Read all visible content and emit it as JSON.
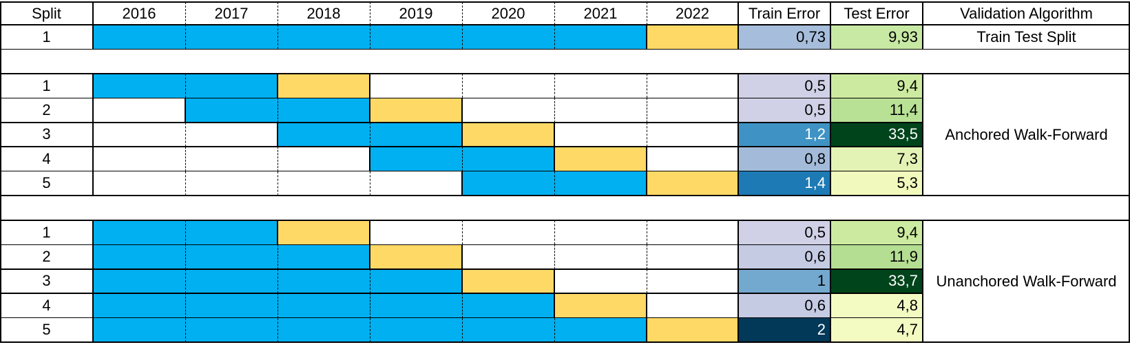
{
  "header": {
    "split": "Split",
    "years": [
      "2016",
      "2017",
      "2018",
      "2019",
      "2020",
      "2021",
      "2022"
    ],
    "train_error": "Train Error",
    "test_error": "Test Error",
    "validation_algorithm": "Validation Algorithm"
  },
  "colors": {
    "train_period": "#00b0f0",
    "test_period": "#ffd966",
    "gridline": "#000000"
  },
  "groups": [
    {
      "algorithm": "Train Test Split",
      "rows": [
        {
          "split": "1",
          "train_years": [
            "2016",
            "2017",
            "2018",
            "2019",
            "2020",
            "2021"
          ],
          "test_year": "2022",
          "train_error": "0,73",
          "train_error_color": "#a6bddb",
          "test_error": "9,93",
          "test_error_color": "#c7e9a4"
        }
      ]
    },
    {
      "algorithm": "Anchored Walk-Forward",
      "rows": [
        {
          "split": "1",
          "train_years": [
            "2016",
            "2017"
          ],
          "test_year": "2018",
          "train_error": "0,5",
          "train_error_color": "#d0d1e6",
          "test_error": "9,4",
          "test_error_color": "#cdeba0"
        },
        {
          "split": "2",
          "train_years": [
            "2017",
            "2018"
          ],
          "test_year": "2019",
          "train_error": "0,5",
          "train_error_color": "#d0d1e6",
          "test_error": "11,4",
          "test_error_color": "#b9e195"
        },
        {
          "split": "3",
          "train_years": [
            "2018",
            "2019"
          ],
          "test_year": "2020",
          "train_error": "1,2",
          "train_error_color": "#3f93c4",
          "test_error": "33,5",
          "test_error_color": "#00441b"
        },
        {
          "split": "4",
          "train_years": [
            "2019",
            "2020"
          ],
          "test_year": "2021",
          "train_error": "0,8",
          "train_error_color": "#a3bbd9",
          "test_error": "7,3",
          "test_error_color": "#e3f3b5"
        },
        {
          "split": "5",
          "train_years": [
            "2020",
            "2021"
          ],
          "test_year": "2022",
          "train_error": "1,4",
          "train_error_color": "#1d7ab4",
          "test_error": "5,3",
          "test_error_color": "#f1f9bc"
        }
      ]
    },
    {
      "algorithm": "Unanchored Walk-Forward",
      "rows": [
        {
          "split": "1",
          "train_years": [
            "2016",
            "2017"
          ],
          "test_year": "2018",
          "train_error": "0,5",
          "train_error_color": "#d0d1e6",
          "test_error": "9,4",
          "test_error_color": "#cdeba0"
        },
        {
          "split": "2",
          "train_years": [
            "2016",
            "2017",
            "2018"
          ],
          "test_year": "2019",
          "train_error": "0,6",
          "train_error_color": "#c5cbe3",
          "test_error": "11,9",
          "test_error_color": "#b4de92"
        },
        {
          "split": "3",
          "train_years": [
            "2016",
            "2017",
            "2018",
            "2019"
          ],
          "test_year": "2020",
          "train_error": "1",
          "train_error_color": "#74a9cf",
          "test_error": "33,7",
          "test_error_color": "#00441b"
        },
        {
          "split": "4",
          "train_years": [
            "2016",
            "2017",
            "2018",
            "2019",
            "2020"
          ],
          "test_year": "2021",
          "train_error": "0,6",
          "train_error_color": "#c5cbe3",
          "test_error": "4,8",
          "test_error_color": "#f4fbc2"
        },
        {
          "split": "5",
          "train_years": [
            "2016",
            "2017",
            "2018",
            "2019",
            "2020",
            "2021"
          ],
          "test_year": "2022",
          "train_error": "2",
          "train_error_color": "#023858",
          "test_error": "4,7",
          "test_error_color": "#f4fbc2"
        }
      ]
    }
  ]
}
